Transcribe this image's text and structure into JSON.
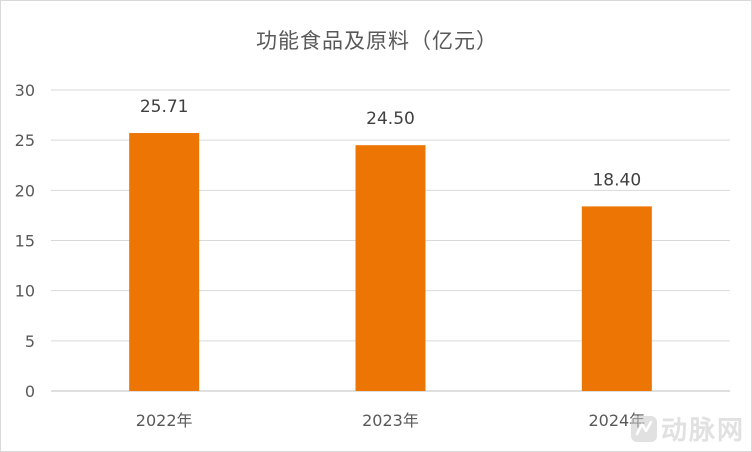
{
  "chart_data": {
    "type": "bar",
    "title": "功能食品及原料（亿元）",
    "categories": [
      "2022年",
      "2023年",
      "2024年"
    ],
    "values": [
      25.71,
      24.5,
      18.4
    ],
    "value_labels": [
      "25.71",
      "24.50",
      "18.40"
    ],
    "ylim": [
      0,
      30
    ],
    "yticks": [
      0,
      5,
      10,
      15,
      20,
      25,
      30
    ],
    "xlabel": "",
    "ylabel": "",
    "grid": true,
    "legend": "none",
    "bar_color": "#ed7504"
  },
  "watermark": {
    "text": "动脉网",
    "icon": "arterial-network-logo-icon"
  }
}
